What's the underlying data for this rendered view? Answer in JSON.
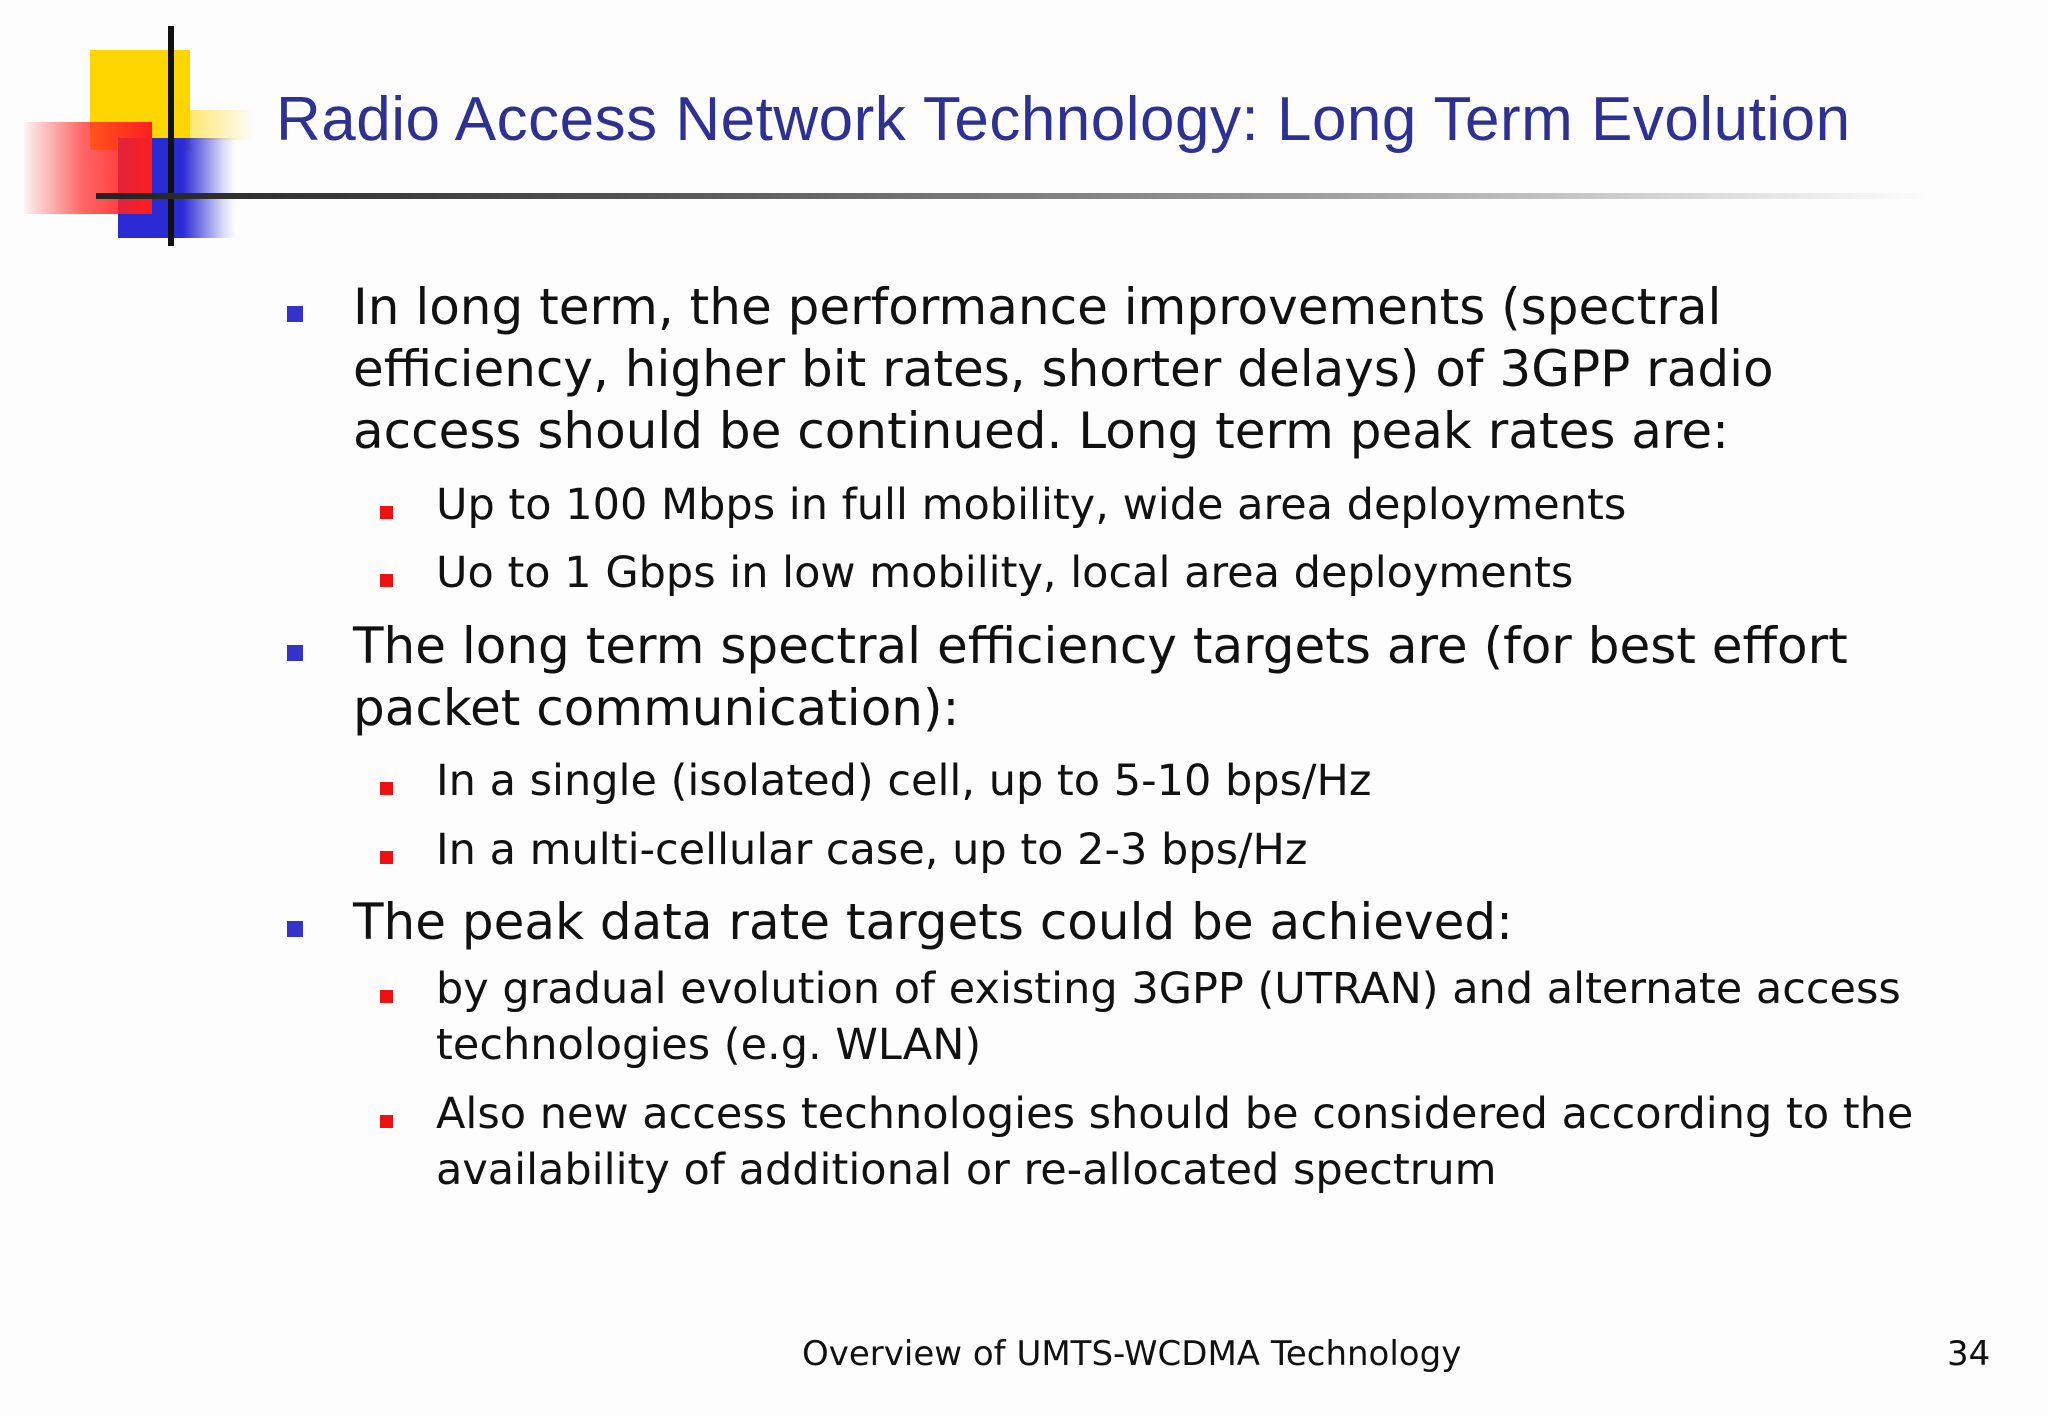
{
  "slide": {
    "title": "Radio Access Network Technology: Long Term Evolution",
    "bullets": [
      {
        "text": "In long term, the performance improvements (spectral efficiency, higher bit rates, shorter delays) of 3GPP radio access should be continued. Long term peak rates are:",
        "subs": [
          "Up to 100 Mbps in full mobility, wide area deployments",
          "Uo to 1 Gbps in low mobility, local area deployments"
        ]
      },
      {
        "text": "The long term spectral efficiency targets are (for best effort packet communication):",
        "subs": [
          "In a single (isolated) cell, up to 5-10 bps/Hz",
          "In a multi-cellular case, up to 2-3 bps/Hz"
        ]
      },
      {
        "text": "The peak data rate targets could be achieved:",
        "subs": [
          "by gradual evolution of existing 3GPP (UTRAN) and alternate access technologies (e.g. WLAN)",
          "Also new access technologies should be considered according to the availability of additional or re-allocated spectrum"
        ]
      }
    ],
    "footer": "Overview of UMTS-WCDMA Technology",
    "page_number": "34"
  },
  "colors": {
    "title": "#2e3192",
    "level1_bullet": "#3333cc",
    "level2_bullet": "#ee1111",
    "logo_yellow": "#ffd600",
    "logo_blue": "#2a2bd4",
    "logo_red": "#ff1e1e"
  }
}
